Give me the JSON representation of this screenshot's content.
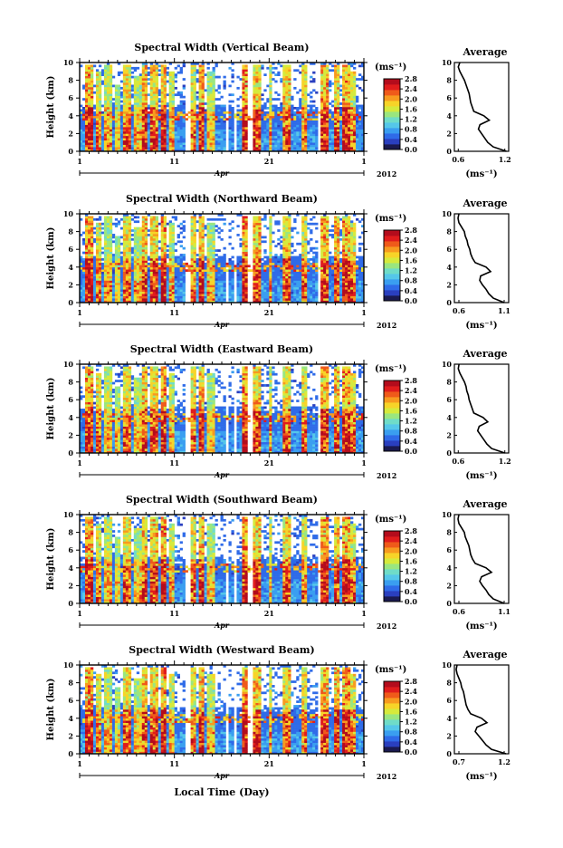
{
  "figure": {
    "xlabel": "Local Time (Day)",
    "unit_label": "(ms⁻¹)",
    "avg_title": "Average"
  },
  "colormap": [
    "#1a1a50",
    "#2a3fbf",
    "#2f6be8",
    "#3a9ef0",
    "#55c7e9",
    "#6fdcc8",
    "#9ae67f",
    "#d6ea3c",
    "#f7d428",
    "#f79a1f",
    "#ef5a1a",
    "#e01c1c",
    "#b30c1c"
  ],
  "chart_data": [
    {
      "type": "heatmap",
      "title": "Spectral Width (Vertical Beam)",
      "ylabel": "Height (km)",
      "ylim": [
        0,
        10
      ],
      "yticks": [
        "0",
        "2",
        "4",
        "6",
        "8",
        "10"
      ],
      "xticks": [
        "1",
        "11",
        "21",
        "1"
      ],
      "month_label": "Apr",
      "year_label": "2012",
      "colorbar": {
        "min": 0,
        "max": 2.8,
        "ticks": [
          "0.0",
          "0.4",
          "0.8",
          "1.2",
          "1.6",
          "2.0",
          "2.4",
          "2.8"
        ]
      },
      "average": {
        "xlabel": "(ms⁻¹)",
        "xticks": [
          "0.6",
          "1.2"
        ],
        "xlim": [
          0.55,
          1.25
        ],
        "heights": [
          0,
          0.5,
          1,
          1.5,
          2,
          2.5,
          3,
          3.5,
          4,
          4.5,
          5,
          5.5,
          6,
          6.5,
          7,
          7.5,
          8,
          8.5,
          9,
          9.5,
          10
        ],
        "values": [
          1.22,
          1.05,
          0.98,
          0.94,
          0.9,
          0.86,
          0.88,
          1.0,
          0.93,
          0.8,
          0.78,
          0.76,
          0.75,
          0.74,
          0.72,
          0.7,
          0.68,
          0.65,
          0.62,
          0.6,
          0.62
        ]
      }
    },
    {
      "type": "heatmap",
      "title": "Spectral Width (Northward Beam)",
      "ylabel": "Height (km)",
      "ylim": [
        0,
        10
      ],
      "yticks": [
        "0",
        "2",
        "4",
        "6",
        "8",
        "10"
      ],
      "xticks": [
        "1",
        "11",
        "21",
        "1"
      ],
      "month_label": "Apr",
      "year_label": "2012",
      "colorbar": {
        "min": 0,
        "max": 2.8,
        "ticks": [
          "0.0",
          "0.4",
          "0.8",
          "1.2",
          "1.6",
          "2.0",
          "2.4",
          "2.8"
        ]
      },
      "average": {
        "xlabel": "(ms⁻¹)",
        "xticks": [
          "0.6",
          "1.1"
        ],
        "xlim": [
          0.55,
          1.15
        ],
        "heights": [
          0,
          0.5,
          1,
          1.5,
          2,
          2.5,
          3,
          3.5,
          4,
          4.5,
          5,
          5.5,
          6,
          6.5,
          7,
          7.5,
          8,
          8.5,
          9,
          9.5,
          10
        ],
        "values": [
          1.1,
          0.98,
          0.93,
          0.9,
          0.86,
          0.83,
          0.84,
          0.95,
          0.9,
          0.78,
          0.75,
          0.73,
          0.72,
          0.7,
          0.69,
          0.67,
          0.66,
          0.63,
          0.6,
          0.59,
          0.6
        ]
      }
    },
    {
      "type": "heatmap",
      "title": "Spectral Width (Eastward Beam)",
      "ylabel": "Height (km)",
      "ylim": [
        0,
        10
      ],
      "yticks": [
        "0",
        "2",
        "4",
        "6",
        "8",
        "10"
      ],
      "xticks": [
        "1",
        "11",
        "21",
        "1"
      ],
      "month_label": "Apr",
      "year_label": "2012",
      "colorbar": {
        "min": 0,
        "max": 2.8,
        "ticks": [
          "0.0",
          "0.4",
          "0.8",
          "1.2",
          "1.6",
          "2.0",
          "2.4",
          "2.8"
        ]
      },
      "average": {
        "xlabel": "(ms⁻¹)",
        "xticks": [
          "0.6",
          "1.2"
        ],
        "xlim": [
          0.55,
          1.25
        ],
        "heights": [
          0,
          0.5,
          1,
          1.5,
          2,
          2.5,
          3,
          3.5,
          4,
          4.5,
          5,
          5.5,
          6,
          6.5,
          7,
          7.5,
          8,
          8.5,
          9,
          9.5,
          10
        ],
        "values": [
          1.2,
          1.03,
          0.97,
          0.93,
          0.89,
          0.85,
          0.87,
          0.98,
          0.92,
          0.8,
          0.78,
          0.76,
          0.74,
          0.73,
          0.71,
          0.7,
          0.68,
          0.65,
          0.62,
          0.6,
          0.61
        ]
      }
    },
    {
      "type": "heatmap",
      "title": "Spectral Width (Southward Beam)",
      "ylabel": "Height (km)",
      "ylim": [
        0,
        10
      ],
      "yticks": [
        "0",
        "2",
        "4",
        "6",
        "8",
        "10"
      ],
      "xticks": [
        "1",
        "11",
        "21",
        "1"
      ],
      "month_label": "Apr",
      "year_label": "2012",
      "colorbar": {
        "min": 0,
        "max": 2.8,
        "ticks": [
          "0.0",
          "0.4",
          "0.8",
          "1.2",
          "1.6",
          "2.0",
          "2.4",
          "2.8"
        ]
      },
      "average": {
        "xlabel": "(ms⁻¹)",
        "xticks": [
          "0.6",
          "1.1"
        ],
        "xlim": [
          0.55,
          1.15
        ],
        "heights": [
          0,
          0.5,
          1,
          1.5,
          2,
          2.5,
          3,
          3.5,
          4,
          4.5,
          5,
          5.5,
          6,
          6.5,
          7,
          7.5,
          8,
          8.5,
          9,
          9.5,
          10
        ],
        "values": [
          1.1,
          0.98,
          0.93,
          0.9,
          0.86,
          0.83,
          0.85,
          0.96,
          0.9,
          0.78,
          0.75,
          0.73,
          0.72,
          0.71,
          0.69,
          0.67,
          0.66,
          0.63,
          0.6,
          0.59,
          0.6
        ]
      }
    },
    {
      "type": "heatmap",
      "title": "Spectral Width (Westward Beam)",
      "ylabel": "Height (km)",
      "ylim": [
        0,
        10
      ],
      "yticks": [
        "0",
        "2",
        "4",
        "6",
        "8",
        "10"
      ],
      "xticks": [
        "1",
        "11",
        "21",
        "1"
      ],
      "month_label": "Apr",
      "year_label": "2012",
      "colorbar": {
        "min": 0,
        "max": 2.8,
        "ticks": [
          "0.0",
          "0.4",
          "0.8",
          "1.2",
          "1.6",
          "2.0",
          "2.4",
          "2.8"
        ]
      },
      "average": {
        "xlabel": "(ms⁻¹)",
        "xticks": [
          "0.7",
          "1.2"
        ],
        "xlim": [
          0.65,
          1.25
        ],
        "heights": [
          0,
          0.5,
          1,
          1.5,
          2,
          2.5,
          3,
          3.5,
          4,
          4.5,
          5,
          5.5,
          6,
          6.5,
          7,
          7.5,
          8,
          8.5,
          9,
          9.5,
          10
        ],
        "values": [
          1.22,
          1.06,
          1.0,
          0.96,
          0.92,
          0.88,
          0.9,
          1.01,
          0.95,
          0.83,
          0.8,
          0.78,
          0.77,
          0.76,
          0.75,
          0.73,
          0.72,
          0.7,
          0.68,
          0.67,
          0.68
        ]
      }
    }
  ]
}
